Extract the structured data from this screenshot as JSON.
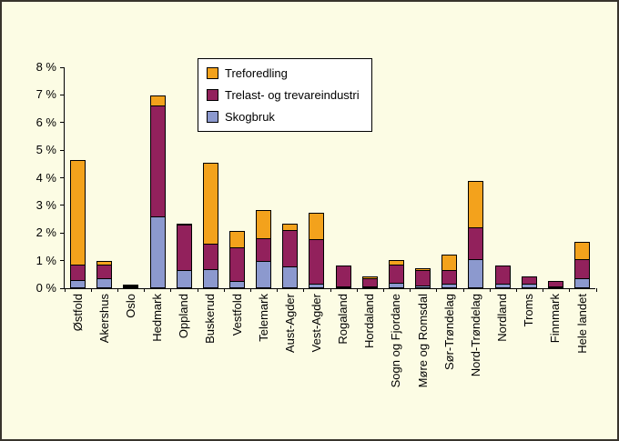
{
  "colors": {
    "background": "#FCFCE4",
    "frame_border": "#38342c",
    "axis": "#000000",
    "bar_border": "#000000",
    "legend_background": "#FFFFFF",
    "treforedling": "#F3A21C",
    "trelast": "#92215C",
    "skogbruk": "#8C99CE"
  },
  "chart_data": {
    "type": "bar",
    "stacked": true,
    "title": "",
    "xlabel": "",
    "ylabel": "",
    "ylim": [
      0,
      8
    ],
    "grid": false,
    "legend_position": "top-center",
    "y_ticks": [
      "0 %",
      "1 %",
      "2 %",
      "3 %",
      "4 %",
      "5 %",
      "6 %",
      "7 %",
      "8 %"
    ],
    "categories": [
      "Østfold",
      "Akershus",
      "Oslo",
      "Hedmark",
      "Oppland",
      "Buskerud",
      "Vestfold",
      "Telemark",
      "Aust-Agder",
      "Vest-Agder",
      "Rogaland",
      "Hordaland",
      "Sogn og Fjordane",
      "Møre og Romsdal",
      "Sør-Trøndelag",
      "Nord-Trøndelag",
      "Nordland",
      "Troms",
      "Finnmark",
      "Hele landet"
    ],
    "series": [
      {
        "name": "Skogbruk",
        "color": "#8C99CE",
        "values": [
          0.3,
          0.35,
          0.03,
          2.6,
          0.65,
          0.7,
          0.25,
          1.0,
          0.8,
          0.15,
          0.05,
          0.05,
          0.2,
          0.1,
          0.15,
          1.05,
          0.15,
          0.15,
          0.05,
          0.35
        ]
      },
      {
        "name": "Trelast- og trevareindustri",
        "color": "#92215C",
        "values": [
          0.6,
          0.55,
          0.05,
          4.05,
          1.7,
          0.95,
          1.25,
          0.85,
          1.35,
          1.65,
          0.8,
          0.35,
          0.7,
          0.6,
          0.55,
          1.2,
          0.7,
          0.3,
          0.25,
          0.75
        ]
      },
      {
        "name": "Treforedling",
        "color": "#F3A21C",
        "values": [
          3.8,
          0.15,
          0.02,
          0.4,
          0.05,
          2.95,
          0.65,
          1.05,
          0.25,
          1.0,
          0.0,
          0.1,
          0.2,
          0.1,
          0.6,
          1.7,
          0.0,
          0.0,
          0.0,
          0.65
        ]
      }
    ],
    "legend": [
      {
        "label": "Treforedling",
        "color": "#F3A21C"
      },
      {
        "label": "Trelast- og trevareindustri",
        "color": "#92215C"
      },
      {
        "label": "Skogbruk",
        "color": "#8C99CE"
      }
    ]
  }
}
